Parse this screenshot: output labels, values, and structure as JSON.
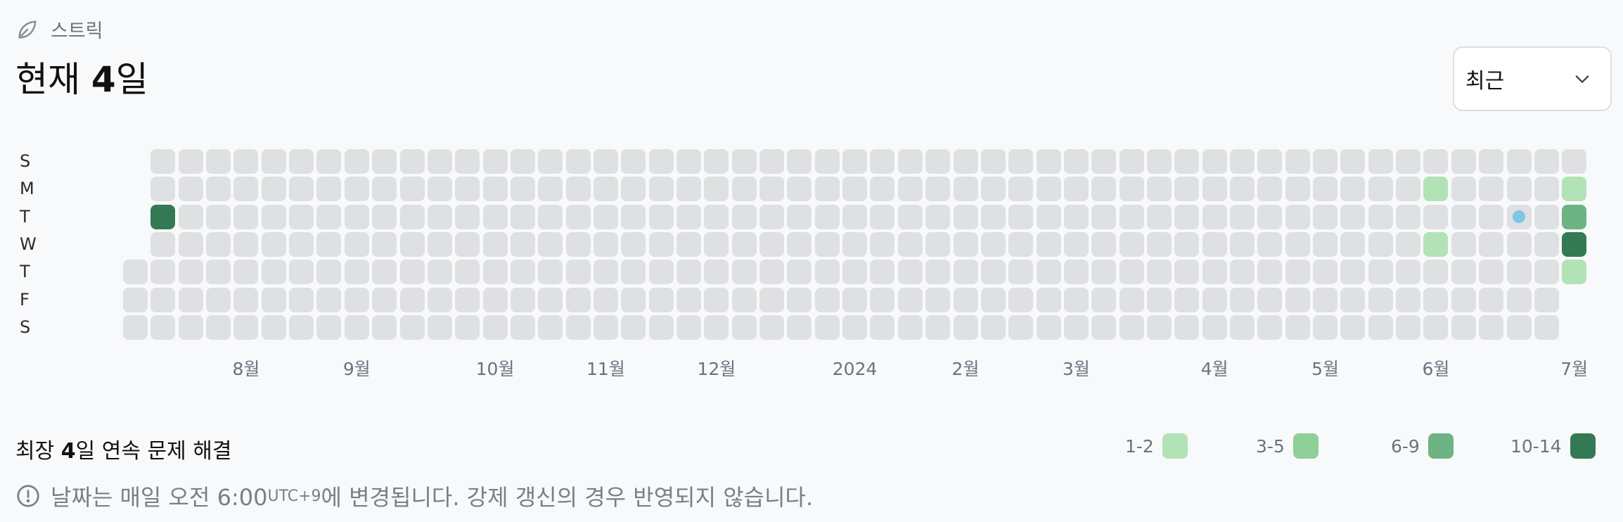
{
  "header": {
    "label": "스트릭",
    "icon": "leaf-icon"
  },
  "title": {
    "prefix": "현재 ",
    "value": "4",
    "suffix": "일"
  },
  "select": {
    "value": "최근",
    "icon": "chevron-down-icon"
  },
  "day_labels": [
    "S",
    "M",
    "T",
    "W",
    "T",
    "F",
    "S"
  ],
  "month_labels": [
    {
      "label": "8월",
      "col": 4
    },
    {
      "label": "9월",
      "col": 8
    },
    {
      "label": "10월",
      "col": 13
    },
    {
      "label": "11월",
      "col": 17
    },
    {
      "label": "12월",
      "col": 21
    },
    {
      "label": "2024",
      "col": 26
    },
    {
      "label": "2월",
      "col": 30
    },
    {
      "label": "3월",
      "col": 34
    },
    {
      "label": "4월",
      "col": 39
    },
    {
      "label": "5월",
      "col": 43
    },
    {
      "label": "6월",
      "col": 47
    },
    {
      "label": "7월",
      "col": 52
    }
  ],
  "grid": {
    "columns": 53,
    "first_column_start_day": 4,
    "last_column_end_day": 4,
    "colors": {
      "empty": "#dfe0e2",
      "level1": "#b2e3b6",
      "level2": "#8fcf98",
      "level3": "#6db384",
      "level4": "#337a54",
      "today_dot": "#7ec6e8"
    },
    "active_cells": [
      {
        "col": 1,
        "day": 2,
        "level": 4
      },
      {
        "col": 47,
        "day": 1,
        "level": 1
      },
      {
        "col": 47,
        "day": 3,
        "level": 1
      },
      {
        "col": 52,
        "day": 1,
        "level": 1
      },
      {
        "col": 52,
        "day": 2,
        "level": 3
      },
      {
        "col": 52,
        "day": 3,
        "level": 4
      },
      {
        "col": 52,
        "day": 4,
        "level": 1
      }
    ],
    "dot_cells": [
      {
        "col": 50,
        "day": 2
      }
    ]
  },
  "longest": {
    "prefix": "최장 ",
    "value": "4",
    "suffix": "일 연속 문제 해결"
  },
  "legend": [
    {
      "label": "1-2",
      "color": "#b2e3b6"
    },
    {
      "label": "3-5",
      "color": "#8fcf98"
    },
    {
      "label": "6-9",
      "color": "#6db384"
    },
    {
      "label": "10-14",
      "color": "#337a54"
    }
  ],
  "note": {
    "icon": "info-icon",
    "text_before": "날짜는 매일 오전 6:00",
    "superscript": "UTC+9",
    "text_after": "에 변경됩니다. 강제 갱신의 경우 반영되지 않습니다."
  }
}
